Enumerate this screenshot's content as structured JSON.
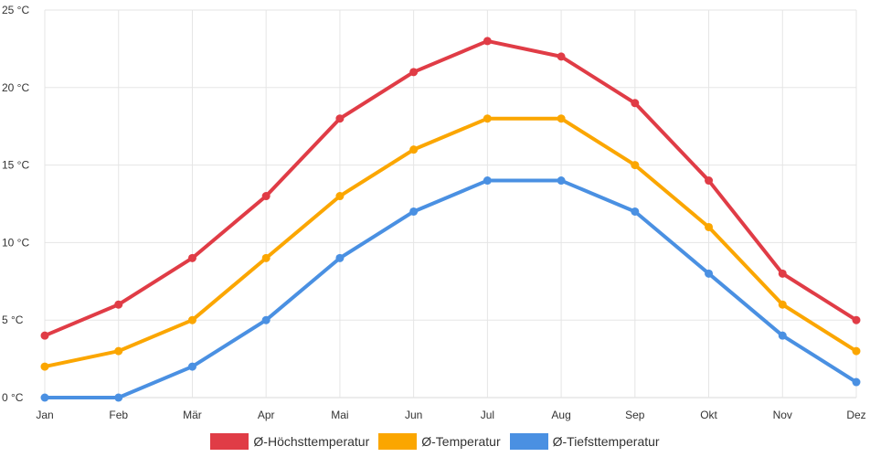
{
  "chart_data": {
    "type": "line",
    "categories": [
      "Jan",
      "Feb",
      "Mär",
      "Apr",
      "Mai",
      "Jun",
      "Jul",
      "Aug",
      "Sep",
      "Okt",
      "Nov",
      "Dez"
    ],
    "ylim": [
      0,
      25
    ],
    "yticks": [
      0,
      5,
      10,
      15,
      20,
      25
    ],
    "y_unit": "°C",
    "grid": true,
    "legend_position": "bottom-center",
    "series": [
      {
        "name": "Ø-Höchsttemperatur",
        "color": "#e03c46",
        "values": [
          4,
          6,
          9,
          13,
          18,
          21,
          23,
          22,
          19,
          14,
          8,
          5
        ]
      },
      {
        "name": "Ø-Temperatur",
        "color": "#fba600",
        "values": [
          2,
          3,
          5,
          9,
          13,
          16,
          18,
          18,
          15,
          11,
          6,
          3
        ]
      },
      {
        "name": "Ø-Tiefsttemperatur",
        "color": "#4a90e2",
        "values": [
          0,
          0,
          2,
          5,
          9,
          12,
          14,
          14,
          12,
          8,
          4,
          1
        ]
      }
    ]
  }
}
